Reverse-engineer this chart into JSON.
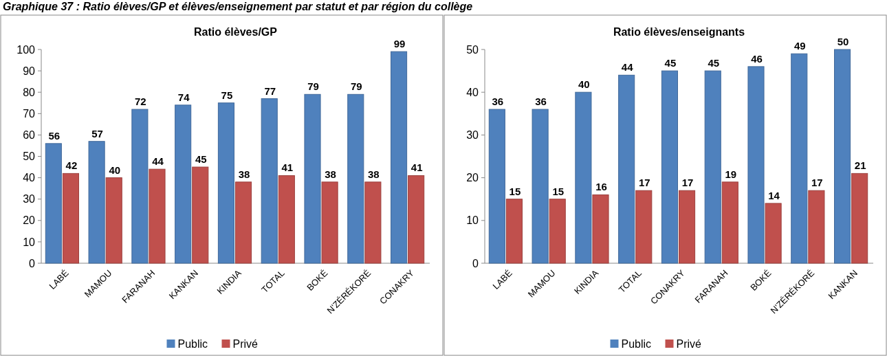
{
  "chart_data": [
    {
      "type": "bar",
      "title": "Ratio élèves/GP",
      "annotations": [
        "Graphique 37 : Ratio élèves/GP et élèves/enseignement par statut et par région du collège"
      ],
      "categories": [
        "LABÉ",
        "MAMOU",
        "FARANAH",
        "KANKAN",
        "KINDIA",
        "TOTAL",
        "BOKÉ",
        "N'ZÉRÉKORÉ",
        "CONAKRY"
      ],
      "series": [
        {
          "name": "Public",
          "color": "#4f81bd",
          "values": [
            56,
            57,
            72,
            74,
            75,
            77,
            79,
            79,
            99
          ]
        },
        {
          "name": "Privé",
          "color": "#c0504d",
          "values": [
            42,
            40,
            44,
            45,
            38,
            41,
            38,
            38,
            41
          ]
        }
      ],
      "ylim": [
        0,
        100
      ],
      "yticks": [
        0,
        10,
        20,
        30,
        40,
        50,
        60,
        70,
        80,
        90,
        100
      ],
      "data_labels": true,
      "legend": "bottom"
    },
    {
      "type": "bar",
      "title": "Ratio élèves/enseignants",
      "categories": [
        "LABÉ",
        "MAMOU",
        "KINDIA",
        "TOTAL",
        "CONAKRY",
        "FARANAH",
        "BOKÉ",
        "N'ZÉRÉKORÉ",
        "KANKAN"
      ],
      "series": [
        {
          "name": "Public",
          "color": "#4f81bd",
          "values": [
            36,
            36,
            40,
            44,
            45,
            45,
            46,
            49,
            50
          ]
        },
        {
          "name": "Privé",
          "color": "#c0504d",
          "values": [
            15,
            15,
            16,
            17,
            17,
            19,
            14,
            17,
            21
          ]
        }
      ],
      "ylim": [
        0,
        50
      ],
      "yticks": [
        0,
        10,
        20,
        30,
        40,
        50
      ],
      "data_labels": true,
      "legend": "bottom"
    }
  ]
}
